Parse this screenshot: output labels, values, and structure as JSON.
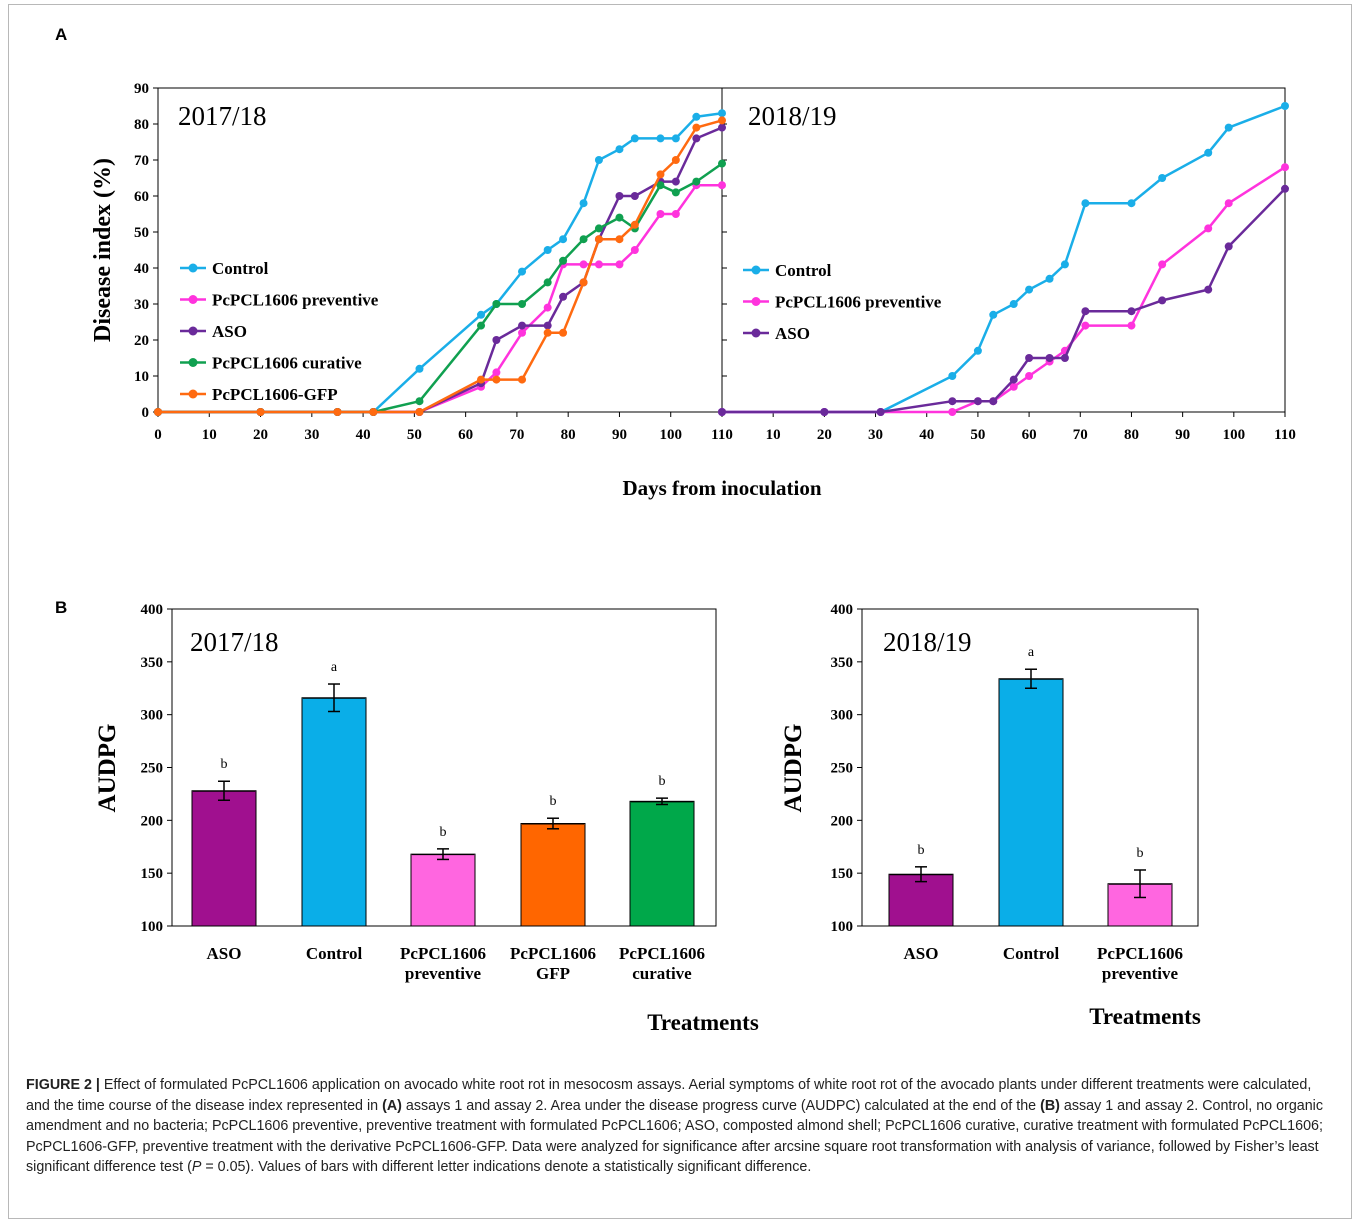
{
  "panels": {
    "a": "A",
    "b": "B"
  },
  "panel_a": {
    "ylabel": "Disease index (%)",
    "xlabel": "Days from inoculation",
    "y_ticks": [
      "0",
      "10",
      "20",
      "30",
      "40",
      "50",
      "60",
      "70",
      "80",
      "90"
    ],
    "left_x_ticks": [
      "0",
      "10",
      "20",
      "30",
      "40",
      "50",
      "60",
      "70",
      "80",
      "90",
      "100"
    ],
    "right_x_ticks": [
      "110",
      "10",
      "20",
      "30",
      "40",
      "50",
      "60",
      "70",
      "80",
      "90",
      "100",
      "110"
    ],
    "left_title": "2017/18",
    "right_title": "2018/19"
  },
  "panel_b": {
    "ylabel": "AUDPG",
    "xlabel": "Treatments",
    "left_title": "2017/18",
    "right_title": "2018/19",
    "y_ticks": [
      "100",
      "150",
      "200",
      "250",
      "300",
      "350",
      "400"
    ]
  },
  "colors": {
    "control": "#1aaee8",
    "preventive": "#ff33dd",
    "aso": "#6a2a9a",
    "curative": "#10a050",
    "gfp": "#ff6a10",
    "bar_aso": "#a0108f",
    "bar_control": "#0aaee8",
    "bar_preventive": "#ff66e0",
    "bar_gfp": "#ff6600",
    "bar_curative": "#00a84a"
  },
  "chart_data": [
    {
      "type": "line",
      "title": "2017/18",
      "xlabel": "Days from inoculation",
      "ylabel": "Disease index (%)",
      "xlim": [
        0,
        110
      ],
      "ylim": [
        0,
        90
      ],
      "grid": false,
      "legend_placement": "middle-left",
      "series": [
        {
          "name": "Control",
          "color": "#1aaee8",
          "x": [
            0,
            20,
            35,
            42,
            51,
            63,
            66,
            71,
            76,
            79,
            83,
            86,
            90,
            93,
            98,
            101,
            105,
            110
          ],
          "y": [
            0,
            0,
            0,
            0,
            12,
            27,
            30,
            39,
            45,
            48,
            58,
            70,
            73,
            76,
            76,
            76,
            82,
            83
          ]
        },
        {
          "name": "PcPCL1606 preventive",
          "color": "#ff33dd",
          "x": [
            0,
            20,
            35,
            42,
            51,
            63,
            66,
            71,
            76,
            79,
            83,
            86,
            90,
            93,
            98,
            101,
            105,
            110
          ],
          "y": [
            0,
            0,
            0,
            0,
            0,
            7,
            11,
            22,
            29,
            41,
            41,
            41,
            41,
            45,
            55,
            55,
            63,
            63
          ]
        },
        {
          "name": "ASO",
          "color": "#6a2a9a",
          "x": [
            0,
            20,
            35,
            42,
            51,
            63,
            66,
            71,
            76,
            79,
            83,
            86,
            90,
            93,
            98,
            101,
            105,
            110
          ],
          "y": [
            0,
            0,
            0,
            0,
            0,
            8,
            20,
            24,
            24,
            32,
            36,
            48,
            60,
            60,
            64,
            64,
            76,
            79
          ]
        },
        {
          "name": "PcPCL1606 curative",
          "color": "#10a050",
          "x": [
            0,
            20,
            35,
            42,
            51,
            63,
            66,
            71,
            76,
            79,
            83,
            86,
            90,
            93,
            98,
            101,
            105,
            110
          ],
          "y": [
            0,
            0,
            0,
            0,
            3,
            24,
            30,
            30,
            36,
            42,
            48,
            51,
            54,
            51,
            63,
            61,
            64,
            69
          ]
        },
        {
          "name": "PcPCL1606-GFP",
          "color": "#ff6a10",
          "x": [
            0,
            20,
            35,
            42,
            51,
            63,
            66,
            71,
            76,
            79,
            83,
            86,
            90,
            93,
            98,
            101,
            105,
            110
          ],
          "y": [
            0,
            0,
            0,
            0,
            0,
            9,
            9,
            9,
            22,
            22,
            36,
            48,
            48,
            52,
            66,
            70,
            79,
            81
          ]
        }
      ]
    },
    {
      "type": "line",
      "title": "2018/19",
      "xlabel": "Days from inoculation",
      "ylabel": "Disease index (%)",
      "xlim": [
        0,
        110
      ],
      "ylim": [
        0,
        90
      ],
      "grid": false,
      "legend_placement": "middle-left",
      "series": [
        {
          "name": "Control",
          "color": "#1aaee8",
          "x": [
            0,
            20,
            31,
            45,
            50,
            53,
            57,
            60,
            64,
            67,
            71,
            80,
            86,
            95,
            99,
            110
          ],
          "y": [
            0,
            0,
            0,
            10,
            17,
            27,
            30,
            34,
            37,
            41,
            58,
            58,
            65,
            72,
            79,
            85
          ]
        },
        {
          "name": "PcPCL1606 preventive",
          "color": "#ff33dd",
          "x": [
            0,
            20,
            31,
            45,
            50,
            53,
            57,
            60,
            64,
            67,
            71,
            80,
            86,
            95,
            99,
            110
          ],
          "y": [
            0,
            0,
            0,
            0,
            3,
            3,
            7,
            10,
            14,
            17,
            24,
            24,
            41,
            51,
            58,
            68
          ]
        },
        {
          "name": "ASO",
          "color": "#6a2a9a",
          "x": [
            0,
            20,
            31,
            45,
            50,
            53,
            57,
            60,
            64,
            67,
            71,
            80,
            86,
            95,
            99,
            110
          ],
          "y": [
            0,
            0,
            0,
            3,
            3,
            3,
            9,
            15,
            15,
            15,
            28,
            28,
            31,
            34,
            46,
            62
          ]
        }
      ]
    },
    {
      "type": "bar",
      "title": "2017/18",
      "xlabel": "Treatments",
      "ylabel": "AUDPG",
      "ylim": [
        100,
        400
      ],
      "categories": [
        [
          "ASO"
        ],
        [
          "Control"
        ],
        [
          "PcPCL1606",
          "preventive"
        ],
        [
          "PcPCL1606",
          "GFP"
        ],
        [
          "PcPCL1606",
          "curative"
        ]
      ],
      "values": [
        228,
        316,
        168,
        197,
        218
      ],
      "errors": [
        9,
        13,
        5,
        5,
        3
      ],
      "letters": [
        "b",
        "a",
        "b",
        "b",
        "b"
      ],
      "colors": [
        "#a0108f",
        "#0aaee8",
        "#ff66e0",
        "#ff6600",
        "#00a84a"
      ]
    },
    {
      "type": "bar",
      "title": "2018/19",
      "xlabel": "Treatments",
      "ylabel": "AUDPG",
      "ylim": [
        100,
        400
      ],
      "categories": [
        [
          "ASO"
        ],
        [
          "Control"
        ],
        [
          "PcPCL1606",
          "preventive"
        ]
      ],
      "values": [
        149,
        334,
        140
      ],
      "errors": [
        7,
        9,
        13
      ],
      "letters": [
        "b",
        "a",
        "b"
      ],
      "colors": [
        "#a0108f",
        "#0aaee8",
        "#ff66e0"
      ]
    }
  ],
  "caption": {
    "label": "FIGURE 2 |",
    "p1": " Effect of formulated PcPCL1606 application on avocado white root rot in mesocosm assays. Aerial symptoms of white root rot of the avocado plants under different treatments were calculated, and the time course of the disease index represented in ",
    "ref_a": "(A)",
    "p2": " assays 1 and assay 2. Area under the disease progress curve (AUDPC) calculated at the end of the ",
    "ref_b": "(B)",
    "p3": " assay 1 and assay 2. Control, no organic amendment and no bacteria; PcPCL1606 preventive, preventive treatment with formulated PcPCL1606; ASO, composted almond shell; PcPCL1606 curative, curative treatment with formulated PcPCL1606; PcPCL1606-GFP, preventive treatment with the derivative PcPCL1606-GFP. Data were analyzed for significance after arcsine square root transformation with analysis of variance, followed by Fisher’s least significant difference test (",
    "p_symbol": "P",
    "p4": " = 0.05). Values of bars with different letter indications denote a statistically significant difference."
  }
}
